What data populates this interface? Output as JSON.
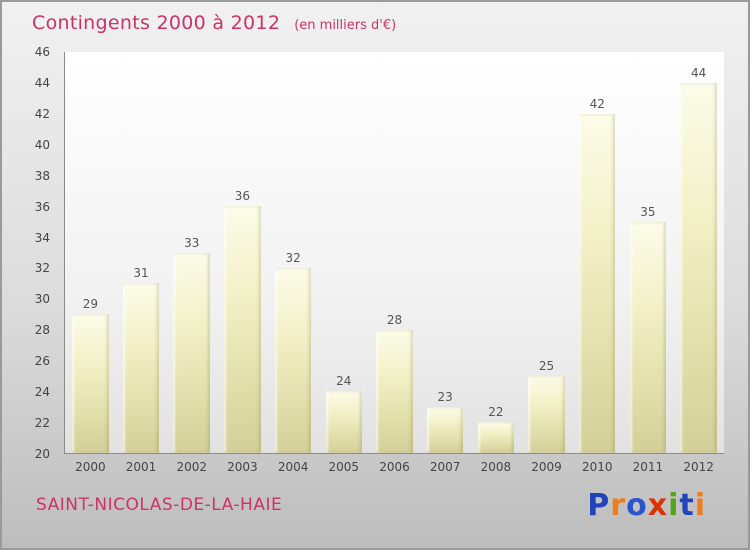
{
  "header": {
    "title": "Contingents 2000 à 2012",
    "subtitle": "(en milliers d'€)"
  },
  "footer": {
    "place": "SAINT-NICOLAS-DE-LA-HAIE",
    "logo_letters": [
      {
        "ch": "P",
        "color": "#2244bb"
      },
      {
        "ch": "r",
        "color": "#f07d1a"
      },
      {
        "ch": "o",
        "color": "#2a55cc"
      },
      {
        "ch": "x",
        "color": "#dd3300"
      },
      {
        "ch": "i",
        "color": "#55a318"
      },
      {
        "ch": "t",
        "color": "#2244bb"
      },
      {
        "ch": "i",
        "color": "#f07d1a"
      }
    ]
  },
  "colors": {
    "accent": "#cc3366",
    "axis": "#8a8a8a",
    "tick_text": "#444444",
    "value_label_text": "#555555",
    "bar_top": "#fcfcea",
    "bar_bottom": "#d2cf98",
    "background_top": "#f1f1f1",
    "background_bottom": "#bdbdbd"
  },
  "chart_data": {
    "type": "bar",
    "title": "Contingents 2000 à 2012",
    "subtitle": "(en milliers d'€)",
    "categories": [
      "2000",
      "2001",
      "2002",
      "2003",
      "2004",
      "2005",
      "2006",
      "2007",
      "2008",
      "2009",
      "2010",
      "2011",
      "2012"
    ],
    "values": [
      29,
      31,
      33,
      36,
      32,
      24,
      28,
      23,
      22,
      25,
      42,
      35,
      44
    ],
    "xlabel": "",
    "ylabel": "",
    "ylim": [
      20,
      46
    ],
    "ytick_step": 2,
    "grid": false,
    "legend": false,
    "bar_value_labels": true
  }
}
